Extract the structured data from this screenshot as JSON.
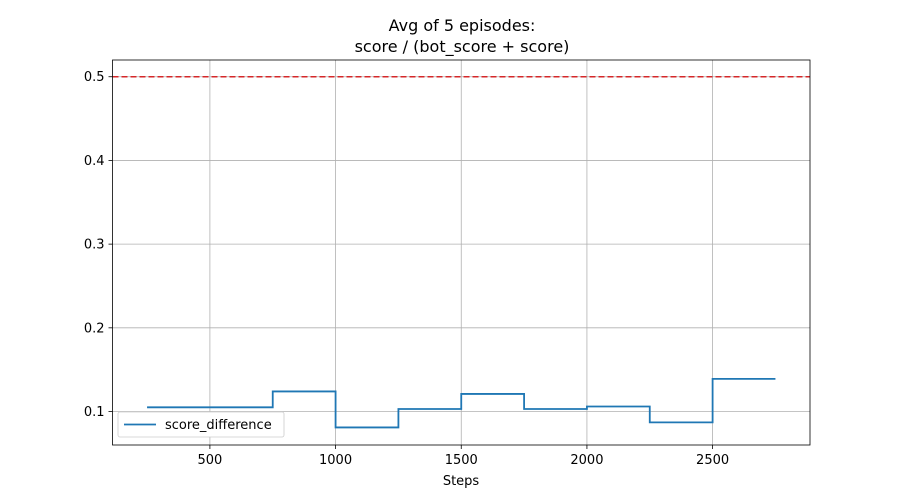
{
  "chart_data": {
    "type": "line",
    "title_lines": [
      "Avg of 5 episodes:",
      "score / (bot_score + score)"
    ],
    "xlabel": "Steps",
    "ylabel": "",
    "xlim": [
      112.5,
      2887.5
    ],
    "ylim": [
      0.06,
      0.52
    ],
    "xticks": [
      500,
      1000,
      1500,
      2000,
      2500
    ],
    "yticks": [
      0.1,
      0.2,
      0.3,
      0.4,
      0.5
    ],
    "grid": true,
    "legend_position": "lower-left",
    "series": [
      {
        "name": "score_difference",
        "color": "#1f77b4",
        "step": "post",
        "x": [
          250,
          750,
          1000,
          1250,
          1500,
          1750,
          2000,
          2250,
          2500,
          2750
        ],
        "y": [
          0.105,
          0.124,
          0.081,
          0.103,
          0.121,
          0.103,
          0.106,
          0.087,
          0.139,
          0.139
        ]
      }
    ],
    "reference_lines": [
      {
        "y": 0.5,
        "color": "#d62728",
        "style": "dashed"
      }
    ]
  }
}
